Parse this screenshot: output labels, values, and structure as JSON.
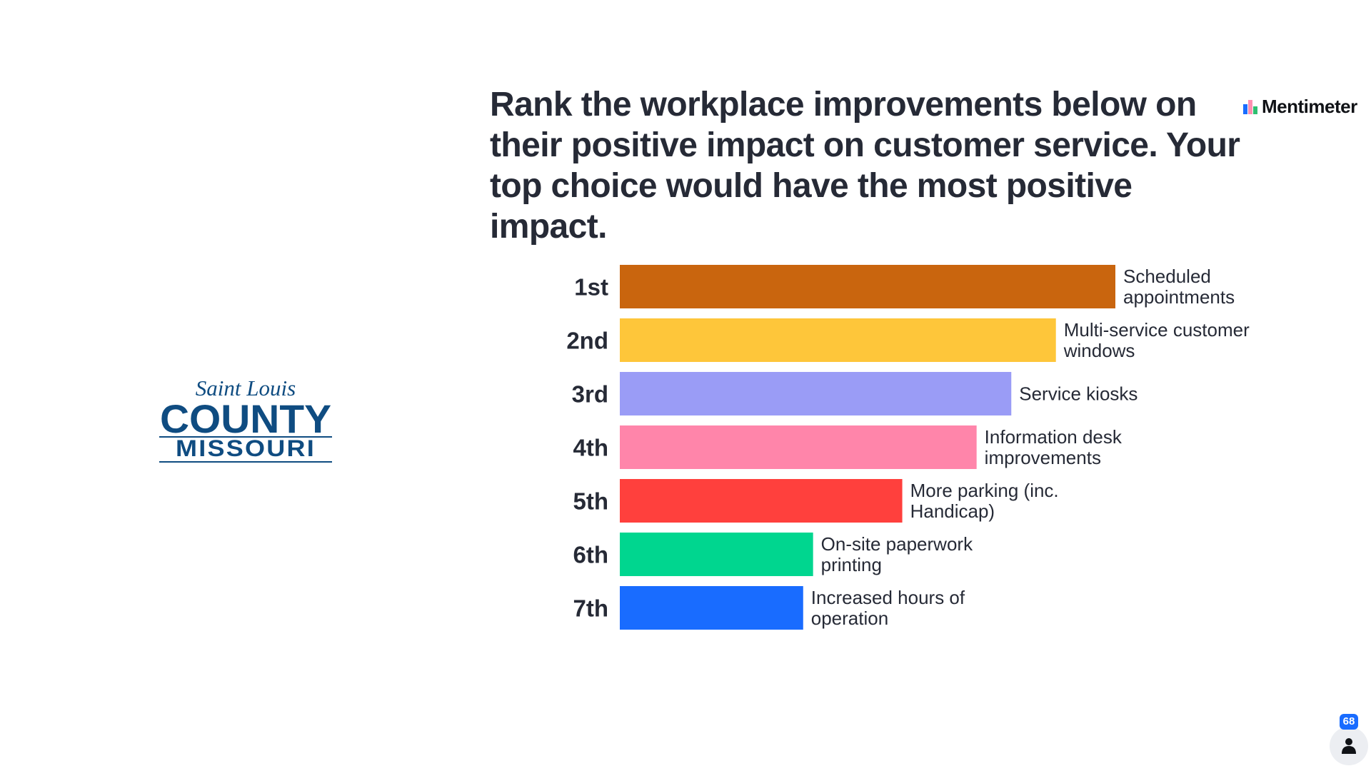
{
  "brand": {
    "name": "Mentimeter",
    "icon": "mentimeter-bars-icon",
    "colors": [
      "#196cff",
      "#ff8fb1",
      "#2fbf71"
    ]
  },
  "question": "Rank the workplace improvements below on their positive impact on customer service. Your top choice would have the most positive impact.",
  "logo": {
    "line1": "Saint Louis",
    "line2": "COUNTY",
    "line3": "MISSOURI",
    "color": "#0f4c81"
  },
  "participants": {
    "count": "68",
    "icon": "person-icon"
  },
  "chart_data": {
    "type": "bar",
    "orientation": "horizontal",
    "title": "Rank the workplace improvements below on their positive impact on customer service. Your top choice would have the most positive impact.",
    "ranks": [
      "1st",
      "2nd",
      "3rd",
      "4th",
      "5th",
      "6th",
      "7th"
    ],
    "categories": [
      [
        "Scheduled",
        "appointments"
      ],
      [
        "Multi-service customer",
        "windows"
      ],
      [
        "Service kiosks"
      ],
      [
        "Information desk",
        "improvements"
      ],
      [
        "More parking (inc.",
        "Handicap)"
      ],
      [
        "On-site paperwork",
        "printing"
      ],
      [
        "Increased hours of",
        "operation"
      ]
    ],
    "values": [
      100,
      88,
      79,
      72,
      57,
      39,
      37
    ],
    "xlim": [
      0,
      100
    ],
    "units": "relative score (% of top option)",
    "colors": [
      "#c9650e",
      "#fec63a",
      "#9a9cf6",
      "#ff85aa",
      "#ff403d",
      "#00d68f",
      "#196cff"
    ],
    "grid": false,
    "legend": "none"
  }
}
